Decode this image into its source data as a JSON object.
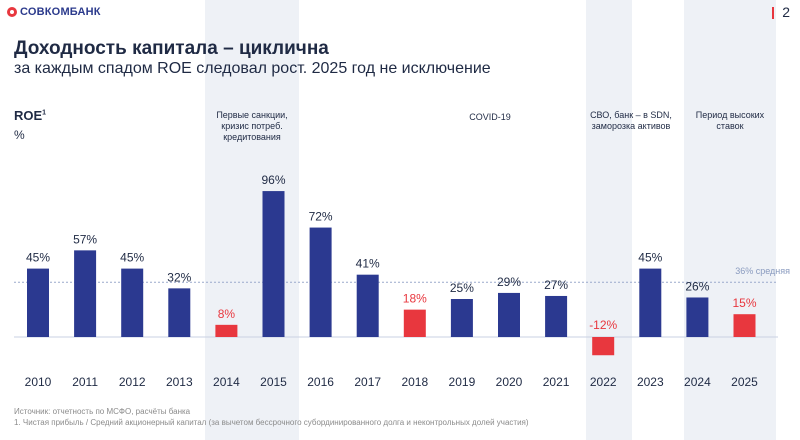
{
  "header": {
    "brand": "СОВКОМБАНК",
    "page_number": "2",
    "title": "Доходность капитала – циклична",
    "subtitle": "за каждым спадом ROE следовал рост. 2025 год не исключение"
  },
  "colors": {
    "positive": "#2b3990",
    "negative": "#e8373e",
    "band": "#eef1f6",
    "avg_line": "#9aa9cc"
  },
  "chart_data": {
    "type": "bar",
    "title": "ROE",
    "ylabel": "%",
    "ylabel_footnote": "1",
    "categories": [
      "2010",
      "2011",
      "2012",
      "2013",
      "2014",
      "2015",
      "2016",
      "2017",
      "2018",
      "2019",
      "2020",
      "2021",
      "2022",
      "2023",
      "2024",
      "2025"
    ],
    "values": [
      45,
      57,
      45,
      32,
      8,
      96,
      72,
      41,
      18,
      25,
      29,
      27,
      -12,
      45,
      26,
      15
    ],
    "value_labels": [
      "45%",
      "57%",
      "45%",
      "32%",
      "8%",
      "96%",
      "72%",
      "41%",
      "18%",
      "25%",
      "29%",
      "27%",
      "-12%",
      "45%",
      "26%",
      "15%"
    ],
    "highlight_red": [
      "2014",
      "2018",
      "2022",
      "2025"
    ],
    "average": {
      "value": 36,
      "label": "36% средняя"
    },
    "shaded_periods": [
      {
        "from": "2014",
        "to": "2015",
        "label": "Первые санкции,\nкризис потреб.\nкредитования"
      },
      {
        "from": "2022",
        "to": "2022",
        "label": "СВО, банк – в SDN,\nзаморозка активов"
      },
      {
        "from": "2024",
        "to": "2025",
        "label": "Период высоких\nставок"
      }
    ],
    "annotations": [
      {
        "near": "2020",
        "label": "COVID-19"
      }
    ]
  },
  "footer": {
    "source": "Источник: отчетность по МСФО, расчёты банка",
    "note": "1.    Чистая прибыль / Средний акционерный капитал (за вычетом бессрочного субординированного долга и неконтрольных долей участия)"
  }
}
